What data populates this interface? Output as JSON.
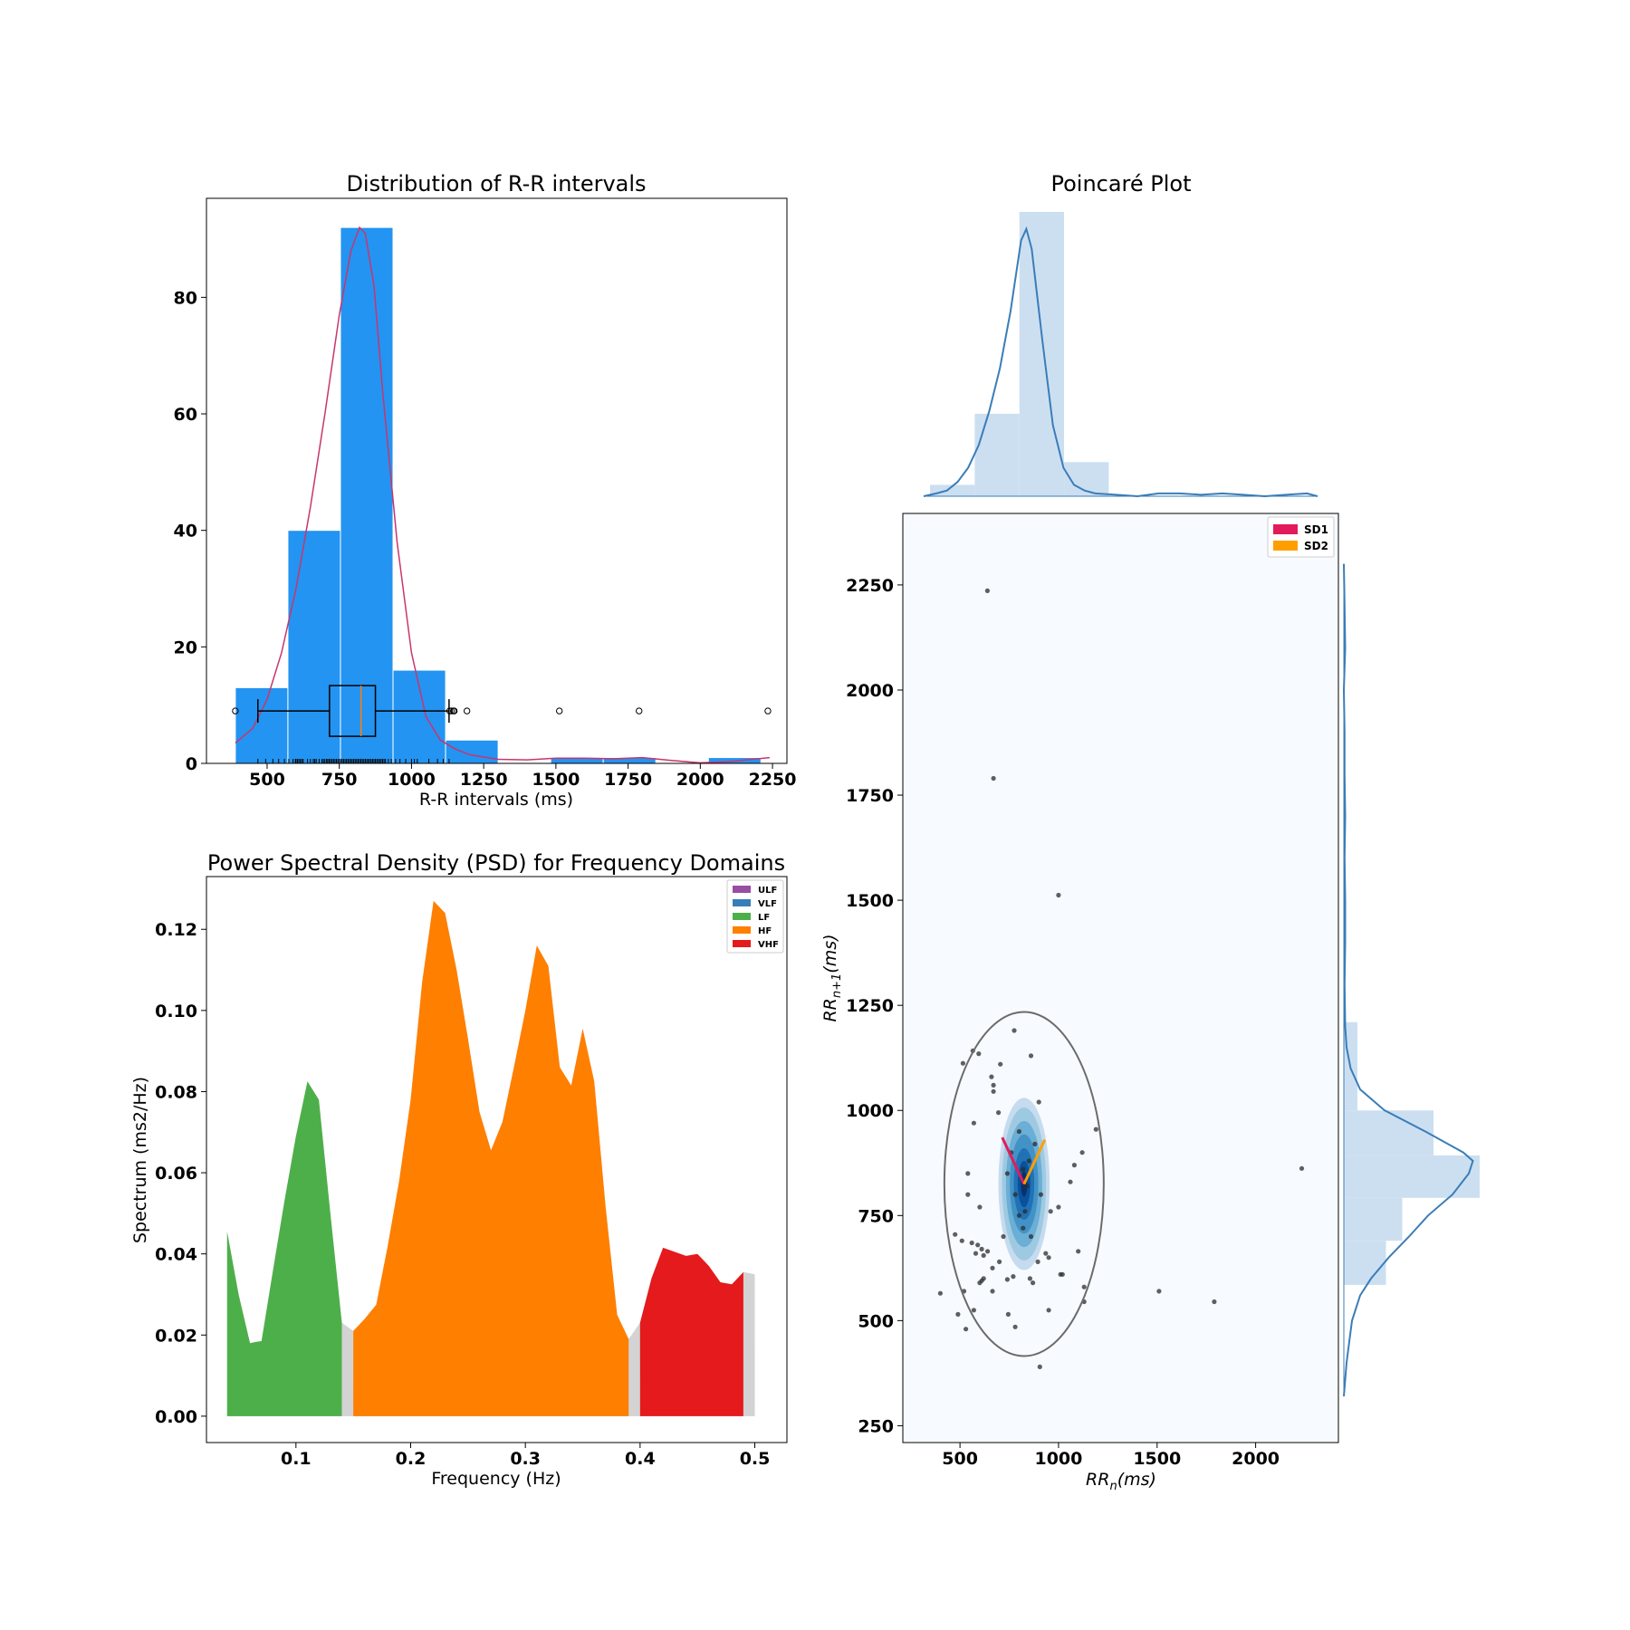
{
  "chart_data": [
    {
      "type": "bar",
      "title": "Distribution of R-R intervals",
      "xlabel": "R-R intervals (ms)",
      "ylabel": "",
      "xlim": [
        290,
        2300
      ],
      "ylim": [
        0,
        97
      ],
      "xticks": [
        "500",
        "750",
        "1000",
        "1250",
        "1500",
        "1750",
        "2000",
        "2250"
      ],
      "xtick_values": [
        500,
        750,
        1000,
        1250,
        1500,
        1750,
        2000,
        2250
      ],
      "yticks": [
        "0",
        "20",
        "40",
        "60",
        "80"
      ],
      "ytick_values": [
        0,
        20,
        40,
        60,
        80
      ],
      "bins": [
        {
          "x0": 390,
          "x1": 572,
          "count": 13
        },
        {
          "x0": 572,
          "x1": 754,
          "count": 40
        },
        {
          "x0": 754,
          "x1": 936,
          "count": 92
        },
        {
          "x0": 936,
          "x1": 1118,
          "count": 16
        },
        {
          "x0": 1118,
          "x1": 1300,
          "count": 4
        },
        {
          "x0": 1300,
          "x1": 1482,
          "count": 0
        },
        {
          "x0": 1482,
          "x1": 1664,
          "count": 1
        },
        {
          "x0": 1664,
          "x1": 1846,
          "count": 1
        },
        {
          "x0": 1846,
          "x1": 2028,
          "count": 0
        },
        {
          "x0": 2028,
          "x1": 2210,
          "count": 1
        }
      ],
      "kde": {
        "x": [
          390,
          450,
          500,
          550,
          600,
          650,
          700,
          750,
          790,
          820,
          840,
          870,
          900,
          950,
          1000,
          1050,
          1100,
          1150,
          1200,
          1300,
          1400,
          1500,
          1600,
          1700,
          1800,
          1900,
          2000,
          2100,
          2200,
          2240
        ],
        "y": [
          3.5,
          6,
          11,
          19,
          30,
          44,
          60,
          77,
          88,
          92,
          91,
          82,
          64,
          38,
          19,
          8,
          4,
          2.5,
          1.5,
          0.7,
          0.6,
          0.9,
          0.9,
          0.8,
          1.0,
          0.5,
          0.1,
          0.3,
          0.8,
          1.0
        ]
      },
      "boxplot": {
        "whisker_low": 468,
        "q1": 716,
        "median": 825,
        "q3": 875,
        "whisker_high": 1130,
        "y": 9,
        "fliers": [
          390,
          1132,
          1138,
          1145,
          1148,
          1192,
          1512,
          1788,
          2234
        ]
      },
      "rug": [
        468,
        495,
        520,
        540,
        560,
        575,
        590,
        598,
        600,
        605,
        610,
        615,
        620,
        625,
        640,
        650,
        660,
        665,
        670,
        680,
        690,
        695,
        700,
        706,
        710,
        715,
        720,
        725,
        730,
        735,
        740,
        745,
        750,
        755,
        760,
        765,
        770,
        775,
        780,
        785,
        790,
        795,
        800,
        805,
        810,
        815,
        820,
        825,
        830,
        835,
        840,
        845,
        850,
        855,
        860,
        865,
        870,
        875,
        880,
        885,
        890,
        895,
        900,
        905,
        910,
        920,
        930,
        945,
        960,
        980,
        1000,
        1010,
        1020,
        1060,
        1090,
        1110,
        1130
      ]
    },
    {
      "type": "area",
      "title": "Power Spectral Density (PSD) for Frequency Domains",
      "xlabel": "Frequency (Hz)",
      "ylabel": "Spectrum (ms2/Hz)",
      "xlim": [
        0.022,
        0.528
      ],
      "ylim": [
        -0.0065,
        0.133
      ],
      "xticks": [
        "0.1",
        "0.2",
        "0.3",
        "0.4",
        "0.5"
      ],
      "xtick_values": [
        0.1,
        0.2,
        0.3,
        0.4,
        0.5
      ],
      "yticks": [
        "0.00",
        "0.02",
        "0.04",
        "0.06",
        "0.08",
        "0.10",
        "0.12"
      ],
      "ytick_values": [
        0,
        0.02,
        0.04,
        0.06,
        0.08,
        0.1,
        0.12
      ],
      "legend": [
        "ULF",
        "VLF",
        "LF",
        "HF",
        "VHF"
      ],
      "legend_colors": [
        "#984ea3",
        "#377eb8",
        "#4daf4a",
        "#ff7f00",
        "#e41a1c"
      ],
      "legend_placement": "upper right",
      "background_color": "#d3d3d3",
      "background": {
        "x": [
          0.04,
          0.05,
          0.06,
          0.065,
          0.07,
          0.08,
          0.09,
          0.1,
          0.11,
          0.12,
          0.13,
          0.14,
          0.15,
          0.16,
          0.17,
          0.18,
          0.19,
          0.2,
          0.21,
          0.22,
          0.23,
          0.24,
          0.25,
          0.26,
          0.27,
          0.28,
          0.29,
          0.3,
          0.31,
          0.32,
          0.33,
          0.34,
          0.35,
          0.36,
          0.37,
          0.38,
          0.39,
          0.4,
          0.41,
          0.42,
          0.43,
          0.44,
          0.45,
          0.46,
          0.47,
          0.48,
          0.49,
          0.5
        ],
        "y": [
          0.0455,
          0.03,
          0.018,
          0.0183,
          0.0185,
          0.036,
          0.053,
          0.069,
          0.0825,
          0.078,
          0.05,
          0.023,
          0.021,
          0.024,
          0.0275,
          0.042,
          0.058,
          0.078,
          0.107,
          0.127,
          0.124,
          0.11,
          0.093,
          0.075,
          0.0655,
          0.0725,
          0.086,
          0.1,
          0.116,
          0.111,
          0.086,
          0.0815,
          0.0955,
          0.0825,
          0.0515,
          0.025,
          0.019,
          0.023,
          0.034,
          0.0415,
          0.0405,
          0.0395,
          0.04,
          0.037,
          0.033,
          0.0325,
          0.0355,
          0.035
        ]
      },
      "bands": [
        {
          "name": "LF",
          "x0": 0.04,
          "x1": 0.14,
          "color": "#4daf4a"
        },
        {
          "name": "HF",
          "x0": 0.15,
          "x1": 0.39,
          "color": "#ff7f00"
        },
        {
          "name": "VHF",
          "x0": 0.4,
          "x1": 0.49,
          "color": "#e41a1c"
        }
      ]
    },
    {
      "type": "scatter",
      "title": "Poincaré Plot",
      "xlabel_base": "RR",
      "xlabel_sub": "n",
      "xlabel_unit": "(ms)",
      "ylabel_base": "RR",
      "ylabel_sub": "n+1",
      "ylabel_unit": "(ms)",
      "xlim": [
        210,
        2420
      ],
      "ylim": [
        210,
        2420
      ],
      "xticks": [
        "500",
        "1000",
        "1500",
        "2000"
      ],
      "xtick_values": [
        500,
        1000,
        1500,
        2000
      ],
      "yticks": [
        "250",
        "500",
        "750",
        "1000",
        "1250",
        "1500",
        "1750",
        "2000",
        "2250"
      ],
      "ytick_values": [
        250,
        500,
        750,
        1000,
        1250,
        1500,
        1750,
        2000,
        2250
      ],
      "legend": [
        "SD1",
        "SD2"
      ],
      "legend_colors": [
        "#e31a5c",
        "#ff9e00"
      ],
      "legend_placement": "upper right",
      "center": [
        825,
        825
      ],
      "sd1": 92,
      "sd2": 186,
      "points": [
        [
          639,
          2236
        ],
        [
          670,
          1790
        ],
        [
          1000,
          1512
        ],
        [
          2234,
          862
        ],
        [
          775,
          1190
        ],
        [
          565,
          1142
        ],
        [
          595,
          1135
        ],
        [
          515,
          1112
        ],
        [
          660,
          1080
        ],
        [
          670,
          1060
        ],
        [
          705,
          1110
        ],
        [
          860,
          1130
        ],
        [
          670,
          1045
        ],
        [
          900,
          1020
        ],
        [
          570,
          970
        ],
        [
          695,
          995
        ],
        [
          1190,
          955
        ],
        [
          1120,
          900
        ],
        [
          1080,
          870
        ],
        [
          1060,
          830
        ],
        [
          540,
          850
        ],
        [
          540,
          800
        ],
        [
          600,
          770
        ],
        [
          960,
          760
        ],
        [
          1000,
          770
        ],
        [
          475,
          705
        ],
        [
          510,
          690
        ],
        [
          560,
          685
        ],
        [
          590,
          680
        ],
        [
          610,
          670
        ],
        [
          640,
          665
        ],
        [
          620,
          655
        ],
        [
          580,
          660
        ],
        [
          1100,
          665
        ],
        [
          665,
          625
        ],
        [
          770,
          605
        ],
        [
          610,
          595
        ],
        [
          600,
          590
        ],
        [
          620,
          600
        ],
        [
          740,
          598
        ],
        [
          855,
          600
        ],
        [
          1010,
          610
        ],
        [
          1020,
          610
        ],
        [
          870,
          590
        ],
        [
          1130,
          580
        ],
        [
          665,
          570
        ],
        [
          520,
          570
        ],
        [
          1510,
          570
        ],
        [
          1130,
          545
        ],
        [
          400,
          565
        ],
        [
          950,
          525
        ],
        [
          570,
          525
        ],
        [
          490,
          515
        ],
        [
          745,
          515
        ],
        [
          530,
          480
        ],
        [
          780,
          485
        ],
        [
          1790,
          545
        ],
        [
          905,
          390
        ],
        [
          895,
          640
        ],
        [
          950,
          650
        ],
        [
          935,
          660
        ],
        [
          700,
          640
        ],
        [
          720,
          700
        ],
        [
          860,
          700
        ],
        [
          800,
          750
        ],
        [
          830,
          760
        ],
        [
          780,
          800
        ],
        [
          840,
          820
        ],
        [
          820,
          860
        ],
        [
          760,
          900
        ],
        [
          850,
          880
        ],
        [
          800,
          950
        ],
        [
          880,
          920
        ],
        [
          740,
          850
        ],
        [
          910,
          800
        ],
        [
          820,
          720
        ]
      ],
      "kde_levels": [
        {
          "rx": 130,
          "ry": 205,
          "color": "#c6dbef"
        },
        {
          "rx": 112,
          "ry": 182,
          "color": "#9ecae1"
        },
        {
          "rx": 92,
          "ry": 150,
          "color": "#6baed6"
        },
        {
          "rx": 72,
          "ry": 118,
          "color": "#4292c6"
        },
        {
          "rx": 52,
          "ry": 85,
          "color": "#2171b5"
        },
        {
          "rx": 32,
          "ry": 55,
          "color": "#08519c"
        },
        {
          "rx": 16,
          "ry": 30,
          "color": "#08306b"
        }
      ],
      "marginal_x": {
        "bins": [
          {
            "x0": 385,
            "x1": 596,
            "h": 0.04
          },
          {
            "x0": 596,
            "x1": 807,
            "h": 0.29
          },
          {
            "x0": 807,
            "x1": 1018,
            "h": 1.0
          },
          {
            "x0": 1018,
            "x1": 1229,
            "h": 0.12
          },
          {
            "x0": 1229,
            "x1": 1440,
            "h": 0.0
          }
        ],
        "kde_x": [
          390,
          450,
          500,
          550,
          600,
          650,
          700,
          750,
          800,
          850,
          875,
          900,
          950,
          1000,
          1050,
          1100,
          1150,
          1200,
          1300,
          1400,
          1500,
          1600,
          1700,
          1800,
          1900,
          2000,
          2100,
          2200,
          2250
        ],
        "kde_y": [
          0.0,
          0.01,
          0.02,
          0.05,
          0.1,
          0.18,
          0.3,
          0.45,
          0.65,
          0.9,
          0.94,
          0.87,
          0.55,
          0.25,
          0.1,
          0.04,
          0.02,
          0.01,
          0.005,
          0.0,
          0.01,
          0.01,
          0.005,
          0.01,
          0.005,
          0.0,
          0.005,
          0.01,
          0.0
        ]
      },
      "marginal_y": {
        "bins": [
          {
            "y0": 585,
            "y1": 690,
            "w": 0.31
          },
          {
            "y0": 690,
            "y1": 792,
            "w": 0.43
          },
          {
            "y0": 792,
            "y1": 893,
            "w": 1.0
          },
          {
            "y0": 893,
            "y1": 1000,
            "w": 0.66
          },
          {
            "y0": 1000,
            "y1": 1210,
            "w": 0.1
          }
        ],
        "kde_y": [
          320,
          400,
          500,
          560,
          600,
          650,
          700,
          750,
          800,
          850,
          880,
          900,
          950,
          1000,
          1050,
          1100,
          1150,
          1200,
          1300,
          1400,
          1500,
          1600,
          1700,
          1800,
          1900,
          2000,
          2100,
          2200,
          2300
        ],
        "kde_x": [
          0.0,
          0.02,
          0.06,
          0.12,
          0.2,
          0.33,
          0.48,
          0.62,
          0.8,
          0.92,
          0.95,
          0.88,
          0.6,
          0.3,
          0.12,
          0.05,
          0.02,
          0.01,
          0.005,
          0.01,
          0.01,
          0.005,
          0.01,
          0.005,
          0.005,
          0.0,
          0.01,
          0.005,
          0.0
        ]
      }
    }
  ]
}
